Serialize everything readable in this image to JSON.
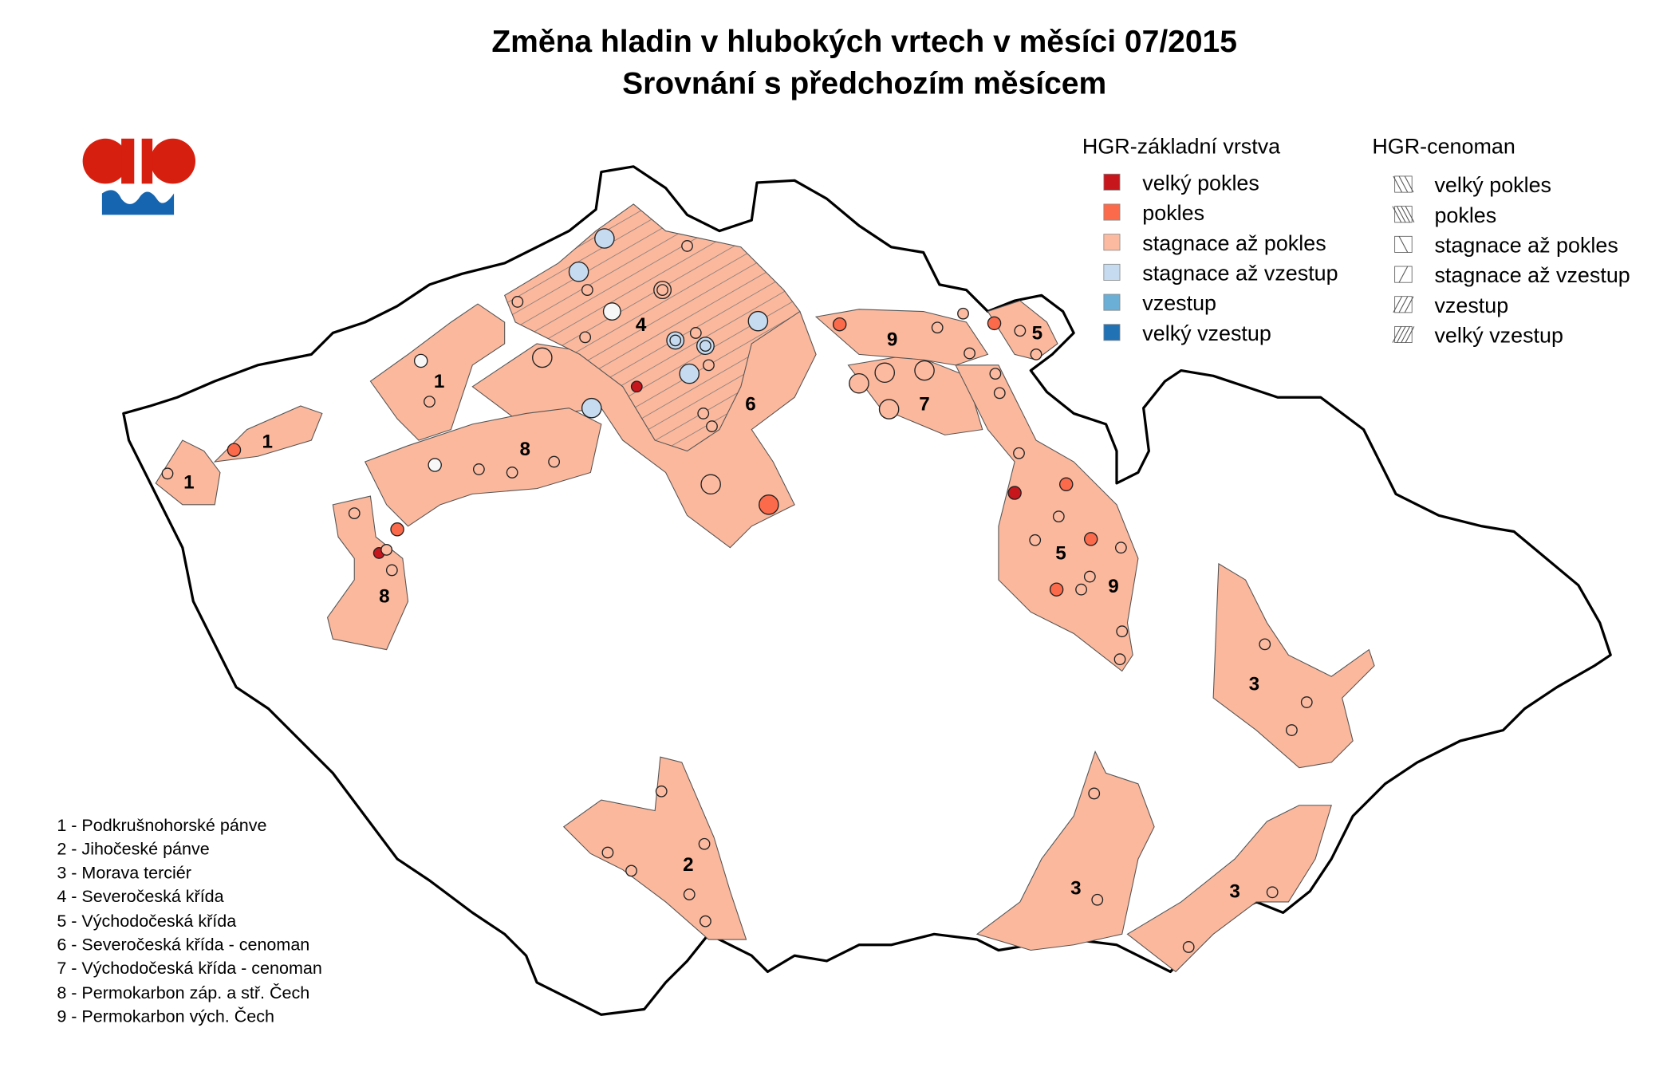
{
  "title": {
    "line1": "Změna hladin v hlubokých vrtech v měsíci 07/2015",
    "line2": "Srovnání s předchozím měsícem"
  },
  "legend_base": {
    "heading": "HGR-základní vrstva",
    "items": [
      {
        "label": "velký pokles",
        "color": "#c8161d"
      },
      {
        "label": "pokles",
        "color": "#fb6a4a"
      },
      {
        "label": "stagnace až pokles",
        "color": "#fcbba1"
      },
      {
        "label": "stagnace až vzestup",
        "color": "#c6dbef"
      },
      {
        "label": "vzestup",
        "color": "#6baed6"
      },
      {
        "label": "velký vzestup",
        "color": "#2171b5"
      }
    ]
  },
  "legend_cenoman": {
    "heading": "HGR-cenoman",
    "items": [
      {
        "label": "velký pokles",
        "pattern": "dense-backslash"
      },
      {
        "label": "pokles",
        "pattern": "backslash"
      },
      {
        "label": "stagnace až pokles",
        "pattern": "single-backslash"
      },
      {
        "label": "stagnace až vzestup",
        "pattern": "single-slash"
      },
      {
        "label": "vzestup",
        "pattern": "slash"
      },
      {
        "label": "velký vzestup",
        "pattern": "dense-slash"
      }
    ]
  },
  "region_list": [
    "1 - Podkrušnohorské pánve",
    "2 - Jihočeské pánve",
    "3 - Morava terciér",
    "4 - Severočeská křída",
    "5 - Východočeská křída",
    "6 - Severočeská křída - cenoman",
    "7 - Východočeská křída - cenoman",
    "8 - Permokarbon záp. a stř. Čech",
    "9 - Permokarbon vých. Čech"
  ],
  "region_labels": [
    "1",
    "1",
    "1",
    "2",
    "3",
    "3",
    "3",
    "4",
    "5",
    "5",
    "6",
    "7",
    "8",
    "8",
    "9",
    "9"
  ],
  "logo": {
    "colors": [
      "#d71f0f",
      "#1565b0"
    ]
  }
}
